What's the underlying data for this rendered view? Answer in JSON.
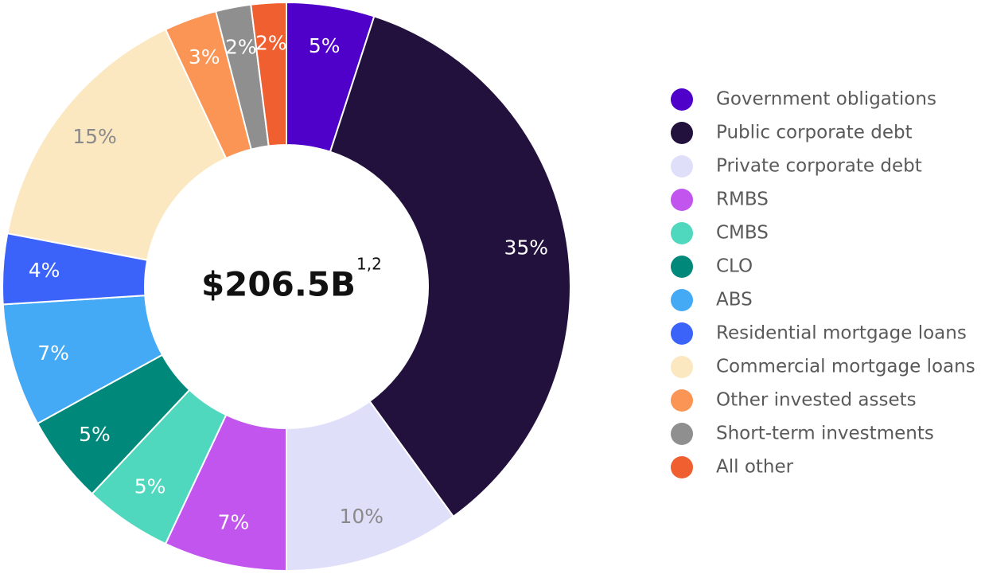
{
  "chart_data": {
    "type": "donut",
    "center_label": "$206.5B",
    "center_note": "1,2",
    "categories": [
      "Government obligations",
      "Public corporate debt",
      "Private corporate debt",
      "RMBS",
      "CMBS",
      "CLO",
      "ABS",
      "Residential mortgage loans",
      "Commercial mortgage loans",
      "Other invested assets",
      "Short-term investments",
      "All other"
    ],
    "values": [
      5,
      35,
      10,
      7,
      5,
      5,
      7,
      4,
      15,
      3,
      2,
      2
    ],
    "value_labels": [
      "5%",
      "35%",
      "10%",
      "7%",
      "5%",
      "5%",
      "7%",
      "4%",
      "15%",
      "3%",
      "2%",
      "2%"
    ],
    "colors": [
      "#4f00c9",
      "#22103d",
      "#e0dffa",
      "#c155ee",
      "#4fd8bd",
      "#00897b",
      "#44aaf5",
      "#3b63fa",
      "#fbe8c0",
      "#fa9555",
      "#8f8f8f",
      "#ef5f2f"
    ],
    "label_colors": [
      "#ffffff",
      "#ffffff",
      "#8a8a8a",
      "#ffffff",
      "#ffffff",
      "#ffffff",
      "#ffffff",
      "#ffffff",
      "#8a8a8a",
      "#ffffff",
      "#ffffff",
      "#ffffff"
    ],
    "legend": "right"
  }
}
